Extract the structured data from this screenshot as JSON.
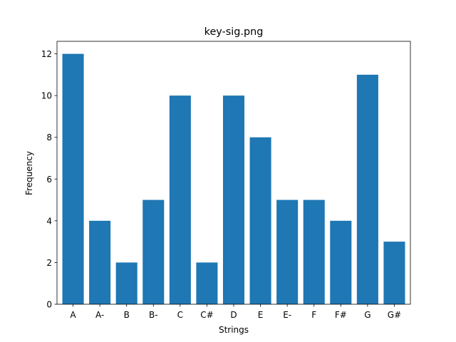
{
  "chart_data": {
    "type": "bar",
    "title": "key-sig.png",
    "xlabel": "Strings",
    "ylabel": "Frequency",
    "categories": [
      "A",
      "A-",
      "B",
      "B-",
      "C",
      "C#",
      "D",
      "E",
      "E-",
      "F",
      "F#",
      "G",
      "G#"
    ],
    "values": [
      12,
      4,
      2,
      5,
      10,
      2,
      10,
      8,
      5,
      5,
      4,
      11,
      3
    ],
    "ylim": [
      0,
      12.6
    ],
    "yticks": [
      0,
      2,
      4,
      6,
      8,
      10,
      12
    ],
    "grid": false,
    "bar_color": "#1f77b4"
  }
}
